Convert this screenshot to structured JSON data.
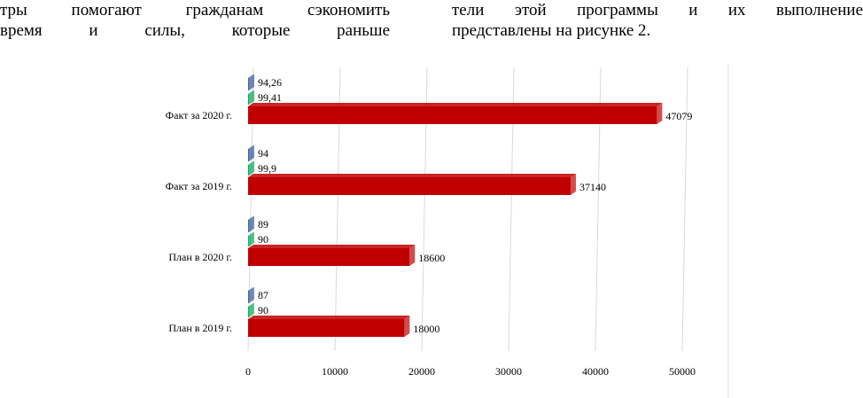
{
  "text": {
    "left": [
      "тры помогают гражданам сэкономить",
      "время и силы, которые раньше"
    ],
    "right": [
      "тели этой программы и их выполнение",
      "представлены на рисунке 2."
    ]
  },
  "chart_data": {
    "type": "bar",
    "orientation": "horizontal",
    "categories": [
      "Факт за 2020 г.",
      "Факт за 2019 г.",
      "План в 2020 г.",
      "План в 2019 г."
    ],
    "series": [
      {
        "color": "#2f5597",
        "values": [
          94.26,
          94,
          89,
          87
        ],
        "value_labels": [
          "94,26",
          "94",
          "89",
          "87"
        ]
      },
      {
        "color": "#00a651",
        "values": [
          99.41,
          99.9,
          90,
          90
        ],
        "value_labels": [
          "99,41",
          "99,9",
          "90",
          "90"
        ]
      },
      {
        "color": "#c00000",
        "values": [
          47079,
          37140,
          18600,
          18000
        ]
      }
    ],
    "xlim": [
      0,
      50000
    ],
    "xticks": [
      0,
      10000,
      20000,
      30000,
      40000,
      50000
    ],
    "grid": true
  }
}
